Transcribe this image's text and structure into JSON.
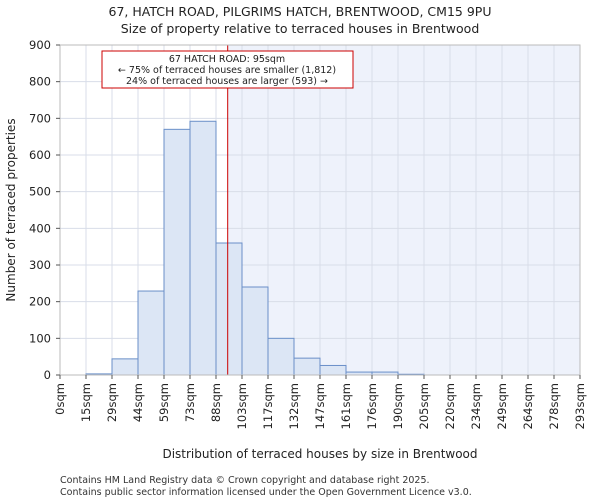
{
  "chart_data": {
    "type": "bar",
    "title": [
      "67, HATCH ROAD, PILGRIMS HATCH, BRENTWOOD, CM15 9PU",
      "Size of property relative to terraced houses in Brentwood"
    ],
    "xlabel": "Distribution of terraced houses by size in Brentwood",
    "ylabel": "Number of terraced properties",
    "ylim": [
      0,
      900
    ],
    "yticks": [
      0,
      100,
      200,
      300,
      400,
      500,
      600,
      700,
      800,
      900
    ],
    "bin_edges": [
      0,
      15,
      29,
      44,
      59,
      73,
      88,
      103,
      117,
      132,
      147,
      161,
      176,
      190,
      205,
      220,
      234,
      249,
      264,
      278,
      293
    ],
    "xtick_labels": [
      "0sqm",
      "15sqm",
      "29sqm",
      "44sqm",
      "59sqm",
      "73sqm",
      "88sqm",
      "103sqm",
      "117sqm",
      "132sqm",
      "147sqm",
      "161sqm",
      "176sqm",
      "190sqm",
      "205sqm",
      "220sqm",
      "234sqm",
      "249sqm",
      "264sqm",
      "278sqm",
      "293sqm"
    ],
    "values": [
      0,
      3,
      44,
      229,
      670,
      692,
      360,
      240,
      100,
      46,
      26,
      8,
      8,
      2,
      0,
      0,
      0,
      0,
      0,
      0
    ],
    "marker": {
      "value": 95,
      "bin_position": 6.45,
      "color": "#cc0000"
    },
    "annotation": [
      "67 HATCH ROAD: 95sqm",
      "← 75% of terraced houses are smaller (1,812)",
      "24% of terraced houses are larger (593) →"
    ],
    "grid": true,
    "colors": {
      "bar_fill": "#dce6f5",
      "bar_edge": "#6a8fc8",
      "right_shade": "#eef2fb",
      "grid": "#d8dde8"
    }
  },
  "footer": {
    "line1": "Contains HM Land Registry data © Crown copyright and database right 2025.",
    "line2": "Contains public sector information licensed under the Open Government Licence v3.0."
  }
}
